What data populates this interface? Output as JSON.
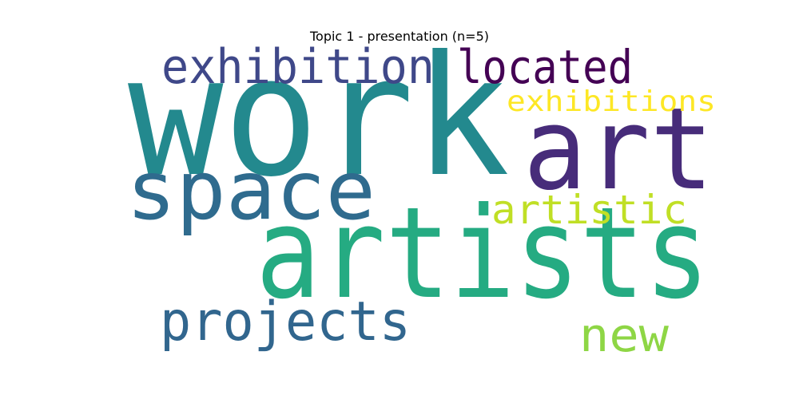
{
  "title": "Topic 1 - presentation (n=5)",
  "words": [
    {
      "text": "work",
      "color": "#23898e"
    },
    {
      "text": "artists",
      "color": "#25ab82"
    },
    {
      "text": "art",
      "color": "#472c7a"
    },
    {
      "text": "space",
      "color": "#2f6b8e"
    },
    {
      "text": "exhibition",
      "color": "#3f4889"
    },
    {
      "text": "projects",
      "color": "#31668e"
    },
    {
      "text": "located",
      "color": "#440154"
    },
    {
      "text": "exhibitions",
      "color": "#fde725"
    },
    {
      "text": "artistic",
      "color": "#c0df25"
    },
    {
      "text": "new",
      "color": "#8ed645"
    }
  ]
}
